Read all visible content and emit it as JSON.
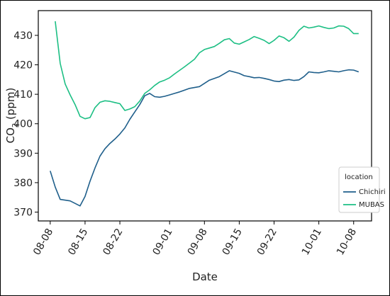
{
  "chart_data": {
    "type": "line",
    "xlabel": "Date",
    "ylabel_main": "CO",
    "ylabel_sub": "2",
    "ylabel_tail": " (ppm)",
    "x_ticks": [
      "08-08",
      "08-15",
      "08-22",
      "09-01",
      "09-08",
      "09-15",
      "09-22",
      "10-01",
      "10-08"
    ],
    "x_tick_days": [
      0,
      7,
      14,
      24,
      31,
      38,
      45,
      54,
      61
    ],
    "xlim": [
      -2.4,
      64.6
    ],
    "ylim": [
      367,
      438.4
    ],
    "y_ticks": [
      370,
      380,
      390,
      400,
      410,
      420,
      430
    ],
    "grid": false,
    "legend": {
      "title": "location",
      "position": "lower-right"
    },
    "series": [
      {
        "name": "Chichiri",
        "color": "#1f5f8b",
        "days": [
          0,
          1,
          2,
          4,
          6,
          7,
          8,
          9,
          10,
          11,
          12,
          13,
          14,
          15,
          16,
          17,
          18,
          19,
          20,
          21,
          22,
          23,
          24,
          25,
          26,
          28,
          30,
          32,
          34,
          36,
          38,
          39,
          40,
          41,
          42,
          43,
          44,
          45,
          46,
          47,
          48,
          49,
          50,
          51,
          52,
          53,
          54,
          55,
          56,
          57,
          58,
          59,
          60,
          61,
          62
        ],
        "values": [
          384,
          378.5,
          374.3,
          373.8,
          372.1,
          375.3,
          380.5,
          385,
          389,
          391.5,
          393.3,
          394.8,
          396.5,
          398.6,
          401.5,
          404,
          406.5,
          409.5,
          410.3,
          409.2,
          409,
          409.3,
          409.8,
          410.3,
          410.8,
          412,
          412.6,
          414.8,
          416,
          418,
          417.1,
          416.3,
          416,
          415.6,
          415.7,
          415.4,
          415,
          414.5,
          414.3,
          414.8,
          415,
          414.7,
          414.9,
          416,
          417.6,
          417.4,
          417.3,
          417.6,
          418,
          417.8,
          417.6,
          418,
          418.3,
          418.2,
          417.6
        ]
      },
      {
        "name": "MUBAS",
        "color": "#1dbf84",
        "days": [
          1,
          2,
          3,
          4,
          5,
          6,
          7,
          8,
          9,
          10,
          11,
          12,
          13,
          14,
          15,
          16,
          17,
          18,
          19,
          20,
          21,
          22,
          23,
          24,
          25,
          26,
          27,
          28,
          29,
          30,
          31,
          32,
          33,
          34,
          35,
          36,
          37,
          38,
          39,
          40,
          41,
          42,
          43,
          44,
          45,
          46,
          47,
          48,
          49,
          50,
          51,
          52,
          53,
          54,
          55,
          56,
          57,
          58,
          59,
          60,
          61,
          62
        ],
        "values": [
          434.8,
          420.5,
          413.5,
          409.8,
          406.5,
          402.5,
          401.7,
          402.1,
          405.5,
          407.3,
          407.8,
          407.6,
          407.2,
          406.8,
          404.5,
          405,
          405.8,
          407.7,
          410.3,
          411.5,
          413,
          414.2,
          414.8,
          415.6,
          416.9,
          418.1,
          419.3,
          420.6,
          421.9,
          424.1,
          425.2,
          425.7,
          426.2,
          427.3,
          428.5,
          428.9,
          427.4,
          427,
          427.8,
          428.6,
          429.6,
          429,
          428.3,
          427.2,
          428.3,
          429.8,
          429.2,
          428,
          429.4,
          431.7,
          433.1,
          432.5,
          432.8,
          433.2,
          432.7,
          432.3,
          432.5,
          433.2,
          433.1,
          432.3,
          430.6,
          430.6
        ]
      }
    ]
  }
}
